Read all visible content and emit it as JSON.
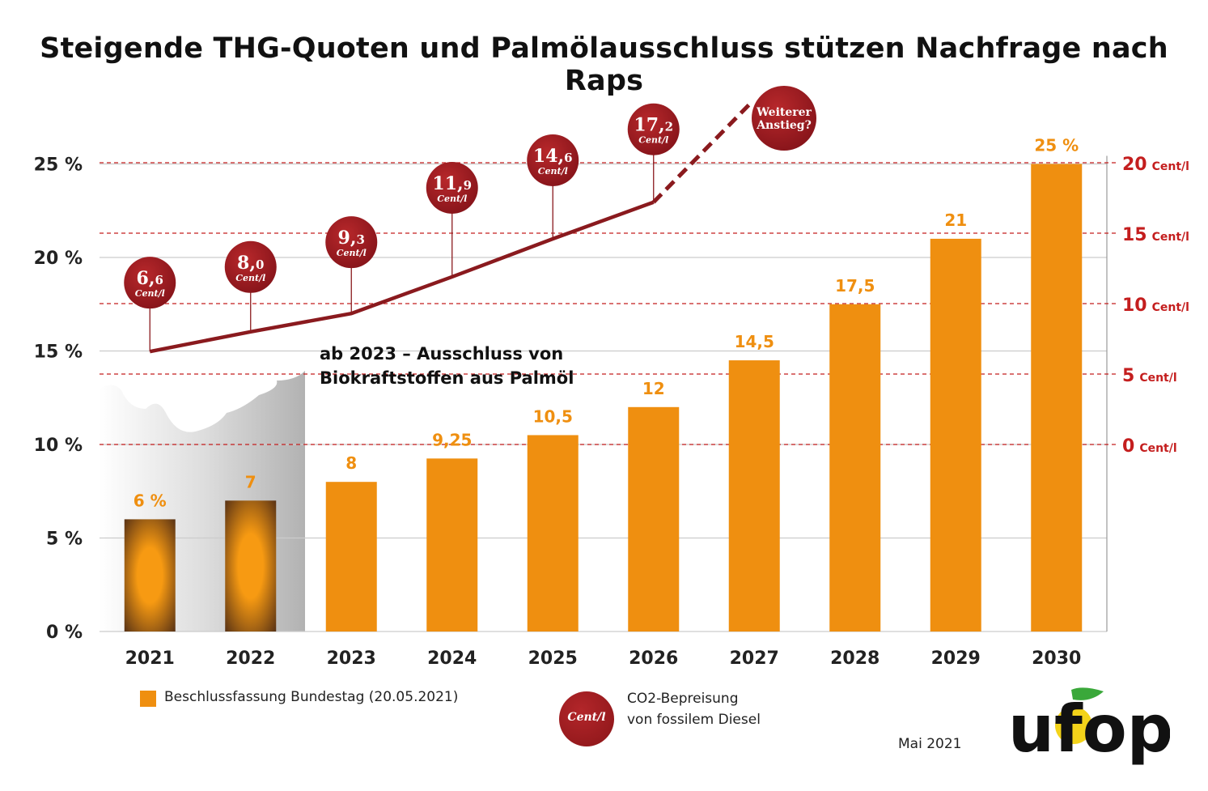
{
  "title": "Steigende THG-Quoten und Palmölausschluss stützen Nachfrage nach Raps",
  "chart_data": {
    "type": "bar",
    "categories": [
      "2021",
      "2022",
      "2023",
      "2024",
      "2025",
      "2026",
      "2027",
      "2028",
      "2029",
      "2030"
    ],
    "series": [
      {
        "name": "Beschlussfassung Bundestag (20.05.2021)",
        "values": [
          6,
          7,
          8,
          9.25,
          10.5,
          12,
          14.5,
          17.5,
          21,
          25
        ]
      }
    ],
    "value_labels": [
      "6 %",
      "7",
      "8",
      "9,25",
      "10,5",
      "12",
      "14,5",
      "17,5",
      "21",
      "25 %"
    ],
    "y_ticks": [
      "0 %",
      "5 %",
      "10 %",
      "15 %",
      "20 %",
      "25 %"
    ],
    "ylim": [
      0,
      26
    ],
    "right_axis": {
      "ticks": [
        {
          "value": 0,
          "label": "0",
          "unit": "Cent/l"
        },
        {
          "value": 5,
          "label": "5",
          "unit": "Cent/l"
        },
        {
          "value": 10,
          "label": "10",
          "unit": "Cent/l"
        },
        {
          "value": 15,
          "label": "15",
          "unit": "Cent/l"
        },
        {
          "value": 20,
          "label": "20",
          "unit": "Cent/l"
        }
      ]
    },
    "line_series": {
      "x": [
        "2021",
        "2022",
        "2023",
        "2024",
        "2025",
        "2026"
      ],
      "values": [
        6.6,
        8.0,
        9.3,
        11.9,
        14.6,
        17.2
      ],
      "labels": [
        "6,6",
        "8,0",
        "9,3",
        "11,9",
        "14,6",
        "17,2"
      ],
      "unit": "Cent/l",
      "projection_label": "Weiterer Anstieg?"
    },
    "annotation": [
      "ab 2023 – Ausschluss von",
      "Biokraftstoffen aus Palmöl"
    ],
    "colors": {
      "bar": "#ef8f10",
      "line": "#8a1a1e",
      "price_axis": "#c41e1e",
      "grid": "#cccccc"
    }
  },
  "legend": {
    "bar_label": "Beschlussfassung Bundestag (20.05.2021)",
    "circle_text": "Cent/l",
    "co2_line1": "CO2-Bepreisung",
    "co2_line2": "von fossilem Diesel"
  },
  "date": "Mai 2021",
  "logo": "ufop"
}
